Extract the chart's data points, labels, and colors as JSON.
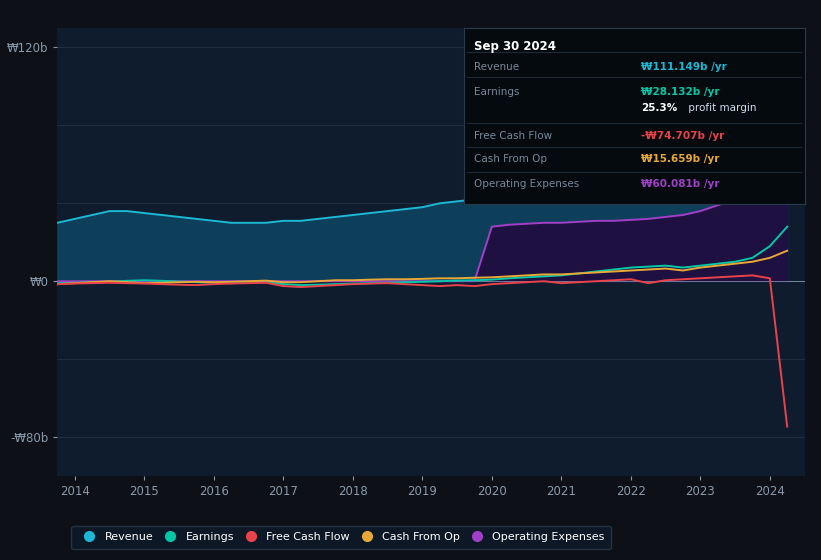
{
  "background_color": "#0d1117",
  "plot_bg_color": "#0f1c2e",
  "years": [
    2013.75,
    2014.0,
    2014.25,
    2014.5,
    2014.75,
    2015.0,
    2015.25,
    2015.5,
    2015.75,
    2016.0,
    2016.25,
    2016.5,
    2016.75,
    2017.0,
    2017.25,
    2017.5,
    2017.75,
    2018.0,
    2018.25,
    2018.5,
    2018.75,
    2019.0,
    2019.25,
    2019.5,
    2019.75,
    2020.0,
    2020.25,
    2020.5,
    2020.75,
    2021.0,
    2021.25,
    2021.5,
    2021.75,
    2022.0,
    2022.25,
    2022.5,
    2022.75,
    2023.0,
    2023.25,
    2023.5,
    2023.75,
    2024.0,
    2024.25
  ],
  "revenue": [
    30,
    32,
    34,
    36,
    36,
    35,
    34,
    33,
    32,
    31,
    30,
    30,
    30,
    31,
    31,
    32,
    33,
    34,
    35,
    36,
    37,
    38,
    40,
    41,
    42,
    43,
    46,
    50,
    54,
    58,
    63,
    67,
    72,
    77,
    82,
    86,
    90,
    94,
    98,
    102,
    106,
    109,
    111
  ],
  "earnings": [
    -1.0,
    -0.8,
    -0.5,
    -0.3,
    0.2,
    0.5,
    0.2,
    -0.2,
    -0.5,
    -0.8,
    -1.0,
    -0.8,
    -0.5,
    -1.5,
    -2.0,
    -1.8,
    -1.5,
    -1.2,
    -1.0,
    -0.8,
    -0.5,
    -0.3,
    0.0,
    0.3,
    0.5,
    0.8,
    1.5,
    2.0,
    2.5,
    3.0,
    4.0,
    5.0,
    6.0,
    7.0,
    7.5,
    8.0,
    7.0,
    8.0,
    9.0,
    10.0,
    12.0,
    18.0,
    28.0
  ],
  "free_cash_flow": [
    -1.5,
    -1.2,
    -1.0,
    -0.8,
    -1.0,
    -1.2,
    -1.5,
    -1.8,
    -2.0,
    -1.5,
    -1.2,
    -1.0,
    -0.8,
    -2.5,
    -3.0,
    -2.5,
    -2.0,
    -1.5,
    -1.2,
    -1.0,
    -1.5,
    -2.0,
    -2.5,
    -2.0,
    -2.5,
    -1.5,
    -1.0,
    -0.5,
    0.0,
    -1.0,
    -0.5,
    0.0,
    0.5,
    1.0,
    -1.0,
    0.5,
    1.0,
    1.5,
    2.0,
    2.5,
    3.0,
    1.5,
    -74.7
  ],
  "cash_from_op": [
    -1.5,
    -1.0,
    -0.5,
    0.0,
    -0.5,
    -1.0,
    -0.8,
    -0.5,
    -0.3,
    -0.5,
    -0.3,
    0.0,
    0.3,
    -0.5,
    -0.5,
    0.0,
    0.5,
    0.5,
    0.8,
    1.0,
    1.0,
    1.2,
    1.5,
    1.5,
    1.8,
    2.0,
    2.5,
    3.0,
    3.5,
    3.5,
    4.0,
    4.5,
    5.0,
    5.5,
    6.0,
    6.5,
    5.5,
    7.0,
    8.0,
    9.0,
    10.0,
    12.0,
    15.659
  ],
  "operating_expenses": [
    0,
    0,
    0,
    0,
    0,
    0,
    0,
    0,
    0,
    0,
    0,
    0,
    0,
    0,
    0,
    0,
    0,
    0,
    0,
    0,
    0,
    0,
    0,
    0,
    0,
    28,
    29,
    29.5,
    30,
    30,
    30.5,
    31,
    31,
    31.5,
    32,
    33,
    34,
    36,
    39,
    42,
    47,
    53,
    60
  ],
  "revenue_color": "#1db8d4",
  "earnings_color": "#00c9a7",
  "free_cash_flow_color": "#e8434a",
  "cash_from_op_color": "#e8a838",
  "operating_expenses_color": "#a040c8",
  "revenue_fill_color": "#0d3f5a",
  "op_exp_fill_color": "#1e1040",
  "ylim_top": 130,
  "ylim_bottom": -100,
  "yticks": [
    120,
    0,
    -80
  ],
  "ytick_labels": [
    "₩120b",
    "₩0",
    "-₩80b"
  ],
  "xtick_labels": [
    "2014",
    "2015",
    "2016",
    "2017",
    "2018",
    "2019",
    "2020",
    "2021",
    "2022",
    "2023",
    "2024"
  ],
  "xtick_positions": [
    2014,
    2015,
    2016,
    2017,
    2018,
    2019,
    2020,
    2021,
    2022,
    2023,
    2024
  ],
  "legend_labels": [
    "Revenue",
    "Earnings",
    "Free Cash Flow",
    "Cash From Op",
    "Operating Expenses"
  ],
  "legend_colors": [
    "#1db8d4",
    "#00c9a7",
    "#e8434a",
    "#e8a838",
    "#a040c8"
  ],
  "info_title": "Sep 30 2024",
  "info_rows": [
    {
      "label": "Revenue",
      "value": "₩111.149b /yr",
      "color": "#1db8d4"
    },
    {
      "label": "Earnings",
      "value": "₩28.132b /yr",
      "color": "#00c9a7"
    },
    {
      "label": "",
      "value": "25.3%",
      "color": "#ffffff",
      "suffix": " profit margin"
    },
    {
      "label": "Free Cash Flow",
      "value": "-₩74.707b /yr",
      "color": "#e8434a"
    },
    {
      "label": "Cash From Op",
      "value": "₩15.659b /yr",
      "color": "#e8a838"
    },
    {
      "label": "Operating Expenses",
      "value": "₩60.081b /yr",
      "color": "#a040c8"
    }
  ]
}
